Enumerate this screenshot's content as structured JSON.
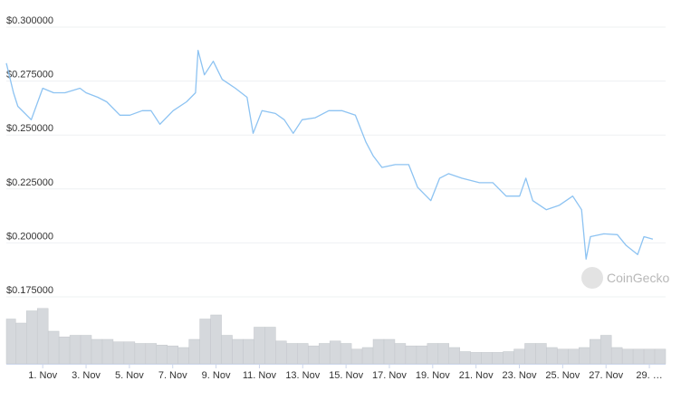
{
  "chart_data": {
    "type": "line",
    "watermark": "CoinGecko",
    "x": [
      -0.68,
      -0.35,
      -0.15,
      0.47,
      1,
      1.5,
      2.03,
      2.72,
      3,
      3.54,
      3.95,
      4.56,
      5.02,
      5.59,
      6,
      6.41,
      7.02,
      7.64,
      8.05,
      8.17,
      8.46,
      8.87,
      9.28,
      9.89,
      10.43,
      10.71,
      11.12,
      11.74,
      12.15,
      12.56,
      12.97,
      13.58,
      14.2,
      14.81,
      15.43,
      15.92,
      16.25,
      16.66,
      17.27,
      17.89,
      18.3,
      18.91,
      19.32,
      19.73,
      20.34,
      21.16,
      21.78,
      22.39,
      23.01,
      23.3,
      23.62,
      24.24,
      24.85,
      25.46,
      25.87,
      26.08,
      26.28,
      26.9,
      27.52,
      27.93,
      28.46,
      28.75,
      29.16
    ],
    "series": [
      {
        "name": "Price",
        "color": "#8dc3f2",
        "values": [
          0.2833,
          0.2696,
          0.2633,
          0.2571,
          0.2717,
          0.2696,
          0.2696,
          0.2717,
          0.2696,
          0.2675,
          0.2654,
          0.2592,
          0.2592,
          0.2613,
          0.2613,
          0.255,
          0.2613,
          0.2654,
          0.2696,
          0.2892,
          0.2779,
          0.2842,
          0.2758,
          0.2717,
          0.2675,
          0.2508,
          0.2613,
          0.26,
          0.2571,
          0.2508,
          0.2571,
          0.258,
          0.2613,
          0.2613,
          0.2592,
          0.2467,
          0.2404,
          0.235,
          0.2363,
          0.2363,
          0.2258,
          0.2196,
          0.23,
          0.2321,
          0.23,
          0.2279,
          0.2279,
          0.2217,
          0.2217,
          0.23,
          0.2196,
          0.2154,
          0.2175,
          0.2217,
          0.2154,
          0.1925,
          0.2029,
          0.2042,
          0.2038,
          0.1988,
          0.1946,
          0.2029,
          0.2017
        ]
      }
    ],
    "volume": {
      "color": "#d5d8dc",
      "ylim": [
        0,
        80
      ],
      "x": [
        -0.5,
        0,
        0.5,
        1,
        1.5,
        2,
        2.5,
        3,
        3.5,
        4,
        4.5,
        5,
        5.5,
        6,
        6.5,
        7,
        7.5,
        8,
        8.5,
        9,
        9.5,
        10,
        10.5,
        11,
        11.5,
        12,
        12.5,
        13,
        13.5,
        14,
        14.5,
        15,
        15.5,
        16,
        16.5,
        17,
        17.5,
        18,
        18.5,
        19,
        19.5,
        20,
        20.5,
        21,
        21.5,
        22,
        22.5,
        23,
        23.5,
        24,
        24.5,
        25,
        25.5,
        26,
        26.5,
        27,
        27.5,
        28,
        28.5,
        29,
        29.5
      ],
      "values": [
        55,
        50,
        65,
        68,
        40,
        33,
        35,
        35,
        30,
        30,
        27,
        27,
        25,
        25,
        23,
        22,
        20,
        30,
        55,
        60,
        35,
        30,
        30,
        45,
        45,
        28,
        25,
        25,
        22,
        25,
        28,
        25,
        18,
        20,
        30,
        30,
        25,
        22,
        22,
        25,
        25,
        20,
        15,
        14,
        14,
        14,
        15,
        18,
        25,
        25,
        20,
        18,
        18,
        20,
        30,
        35,
        20,
        18,
        18,
        18,
        18
      ]
    },
    "xlim": [
      -0.68,
      29.75
    ],
    "xticks": [
      {
        "value": 1,
        "label": "1. Nov"
      },
      {
        "value": 3,
        "label": "3. Nov"
      },
      {
        "value": 5,
        "label": "5. Nov"
      },
      {
        "value": 7,
        "label": "7. Nov"
      },
      {
        "value": 9,
        "label": "9. Nov"
      },
      {
        "value": 11,
        "label": "11. Nov"
      },
      {
        "value": 13,
        "label": "13. Nov"
      },
      {
        "value": 15,
        "label": "15. Nov"
      },
      {
        "value": 17,
        "label": "17. Nov"
      },
      {
        "value": 19,
        "label": "19. Nov"
      },
      {
        "value": 21,
        "label": "21. Nov"
      },
      {
        "value": 23,
        "label": "23. Nov"
      },
      {
        "value": 25,
        "label": "25. Nov"
      },
      {
        "value": 27,
        "label": "27. Nov"
      },
      {
        "value": 29,
        "label": "29. …"
      }
    ],
    "ylim": [
      0.175,
      0.3
    ],
    "yticks": [
      {
        "value": 0.175,
        "label": "$0.175000"
      },
      {
        "value": 0.2,
        "label": "$0.200000"
      },
      {
        "value": 0.225,
        "label": "$0.225000"
      },
      {
        "value": 0.25,
        "label": "$0.250000"
      },
      {
        "value": 0.275,
        "label": "$0.275000"
      },
      {
        "value": 0.3,
        "label": "$0.300000"
      }
    ],
    "grid": true
  }
}
